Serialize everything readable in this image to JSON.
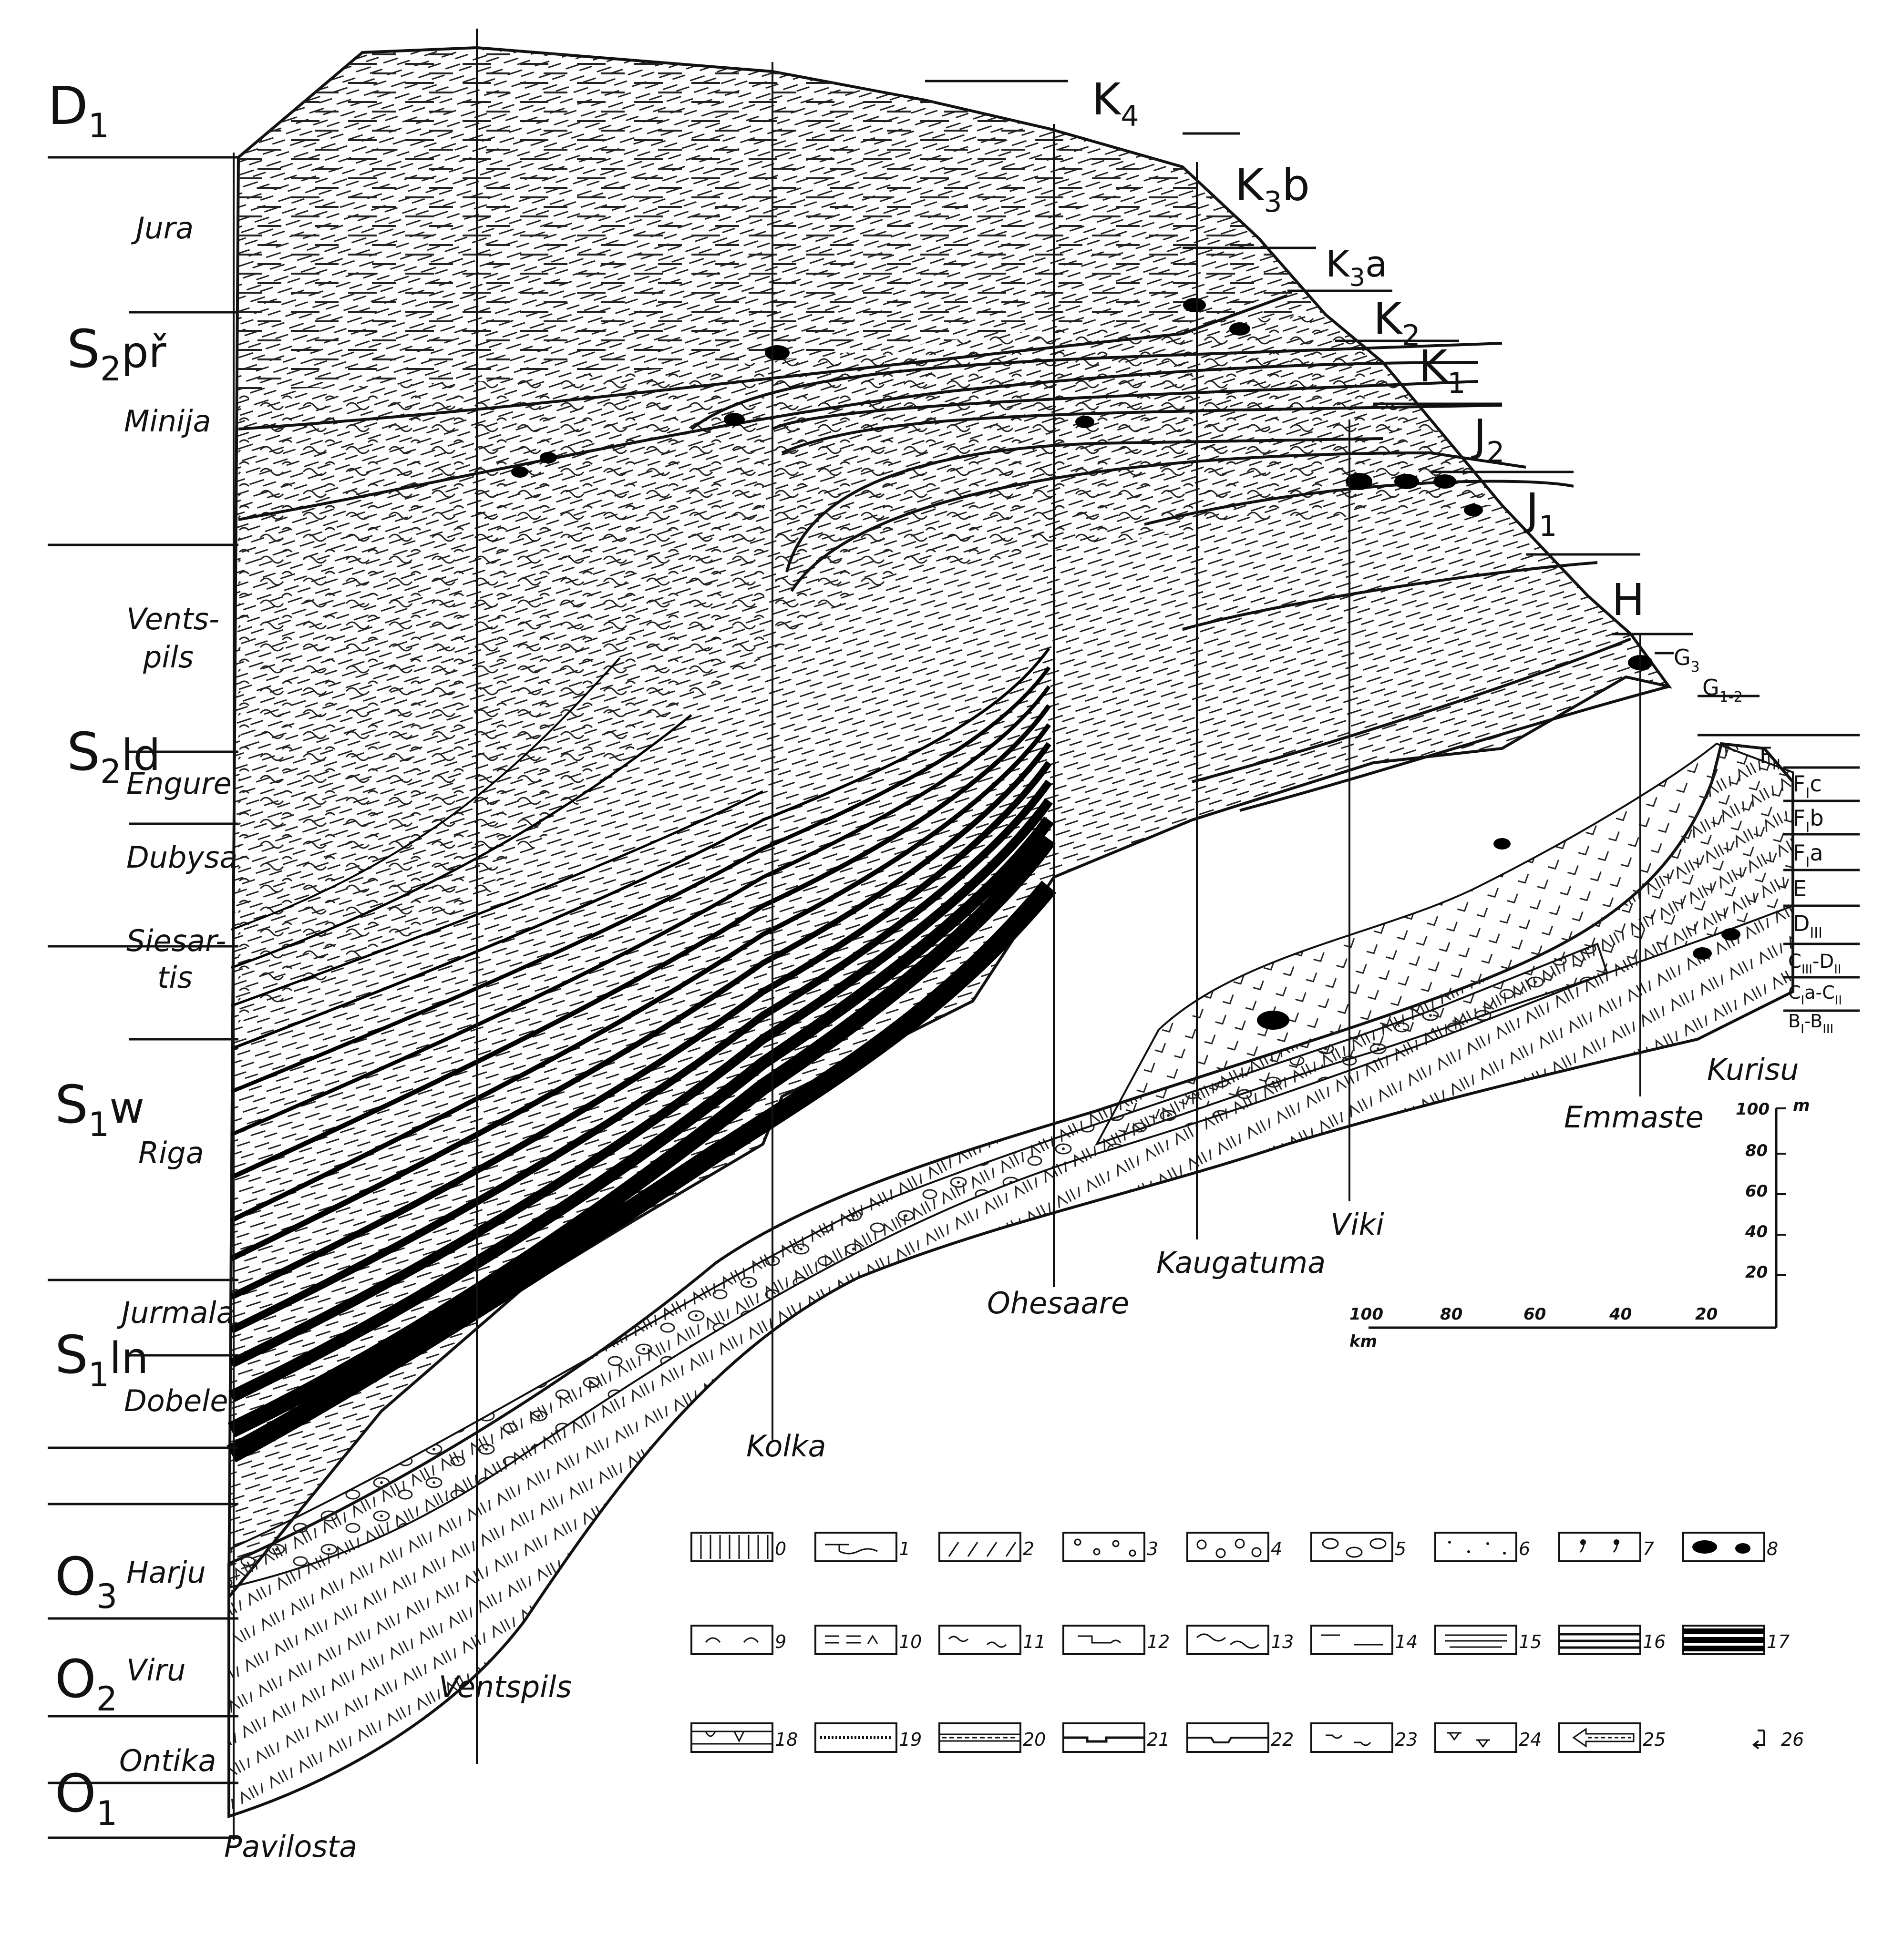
{
  "stage_labels": [
    {
      "main": "D",
      "sub": "1",
      "tail": ""
    },
    {
      "main": "S",
      "sub": "2",
      "tail": "př"
    },
    {
      "main": "S",
      "sub": "2",
      "tail": "ld"
    },
    {
      "main": "S",
      "sub": "1",
      "tail": "w"
    },
    {
      "main": "S",
      "sub": "1",
      "tail": "ln"
    },
    {
      "main": "O",
      "sub": "3",
      "tail": ""
    },
    {
      "main": "O",
      "sub": "2",
      "tail": ""
    },
    {
      "main": "O",
      "sub": "1",
      "tail": ""
    }
  ],
  "formation_labels": [
    "Jura",
    "Minija",
    "Vents-",
    "pils",
    "Engure",
    "Dubysa",
    "Siesar-",
    "tis",
    "Riga",
    "Jurmala",
    "Dobele",
    "Harju",
    "Viru",
    "Ontika"
  ],
  "locality_labels": [
    "Pavilosta",
    "Ventspils",
    "Kolka",
    "Ohesaare",
    "Kaugatuma",
    "Viki",
    "Emmaste",
    "Kurisu"
  ],
  "unit_labels": [
    {
      "main": "K",
      "sub": "4",
      "tail": ""
    },
    {
      "main": "K",
      "sub": "3",
      "tail": "b"
    },
    {
      "main": "K",
      "sub": "3",
      "tail": "a"
    },
    {
      "main": "K",
      "sub": "2",
      "tail": ""
    },
    {
      "main": "K",
      "sub": "1",
      "tail": ""
    },
    {
      "main": "J",
      "sub": "2",
      "tail": ""
    },
    {
      "main": "J",
      "sub": "1",
      "tail": ""
    },
    {
      "main": "H",
      "sub": "",
      "tail": ""
    }
  ],
  "small_unit_labels": [
    {
      "main": "G",
      "sub": "3",
      "tail": ""
    },
    {
      "main": "G",
      "sub": "1-2",
      "tail": ""
    },
    {
      "main": "F",
      "sub": "II",
      "tail": ""
    },
    {
      "main": "F",
      "sub": "I",
      "tail": "c"
    },
    {
      "main": "F",
      "sub": "I",
      "tail": "b"
    },
    {
      "main": "F",
      "sub": "I",
      "tail": "a"
    },
    {
      "main": "E",
      "sub": "",
      "tail": ""
    },
    {
      "main": "D",
      "sub": "III",
      "tail": ""
    },
    {
      "main": "C",
      "sub": "III",
      "tail": "-D",
      "sub2": "II"
    },
    {
      "main": "C",
      "sub": "I",
      "tail": "a-C",
      "sub2": "II"
    },
    {
      "main": "B",
      "sub": "I",
      "tail": "-B",
      "sub2": "III"
    }
  ],
  "scale": {
    "vertical_unit": "m",
    "vertical_ticks": [
      "100",
      "80",
      "60",
      "40",
      "20"
    ],
    "horizontal_unit": "km",
    "horizontal_ticks": [
      "100",
      "80",
      "60",
      "40",
      "20"
    ]
  },
  "legend": {
    "numbers": [
      "0",
      "1",
      "2",
      "3",
      "4",
      "5",
      "6",
      "7",
      "8",
      "9",
      "10",
      "11",
      "12",
      "13",
      "14",
      "15",
      "16",
      "17",
      "18",
      "19",
      "20",
      "21",
      "22",
      "23",
      "24",
      "25",
      "26"
    ],
    "patterns": [
      "vertical-hatch",
      "algal-wavy",
      "diagonal-dashes",
      "small-circles",
      "dotted-circles",
      "ovals",
      "fine-dots",
      "commas",
      "black-lenses",
      "arcs",
      "double-dash-caret",
      "wavy-short",
      "wavy-bracket",
      "wavy-long",
      "dashes",
      "double-dashes",
      "thin-stripes",
      "thick-stripes",
      "reef-boundary",
      "dotted-line",
      "dashed-band",
      "bump-line",
      "notch-line",
      "small-wave-ticks",
      "v-ticks",
      "arrow",
      "bracket-arrow"
    ]
  }
}
